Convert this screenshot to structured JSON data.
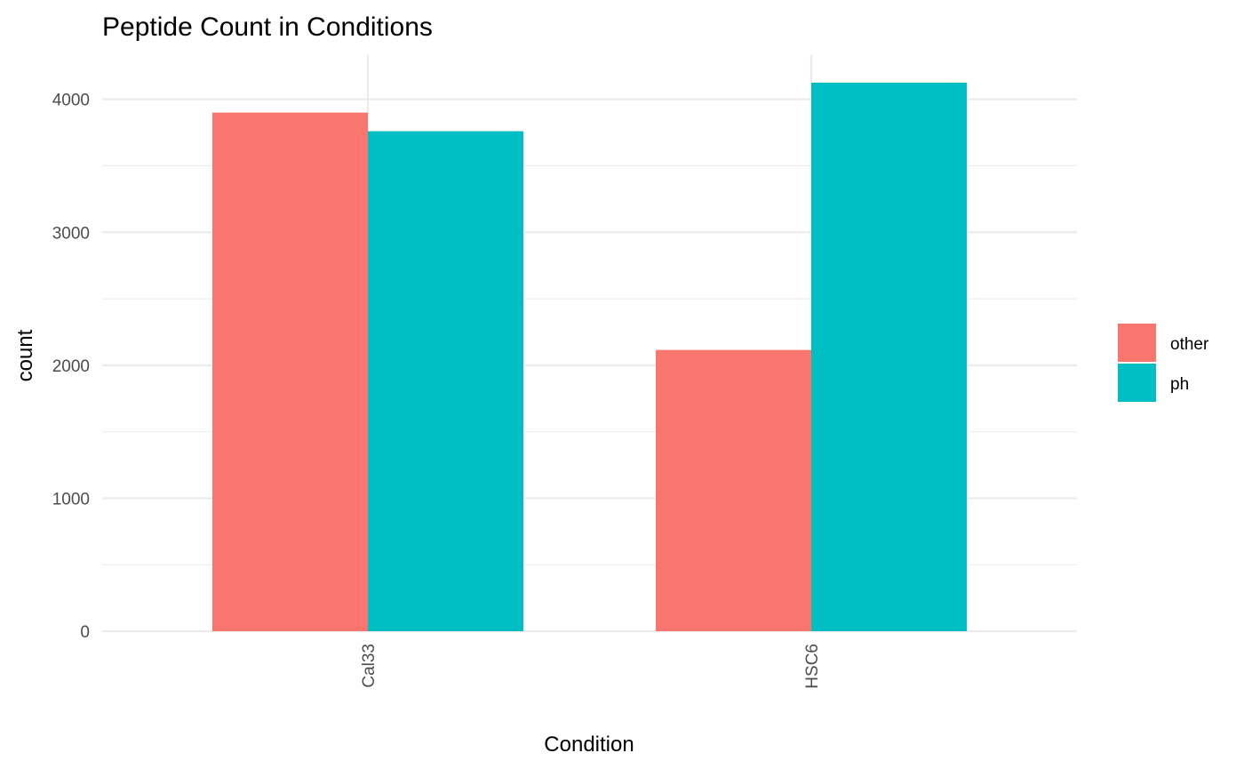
{
  "chart_data": {
    "type": "bar",
    "title": "Peptide Count in Conditions",
    "xlabel": "Condition",
    "ylabel": "count",
    "categories": [
      "Cal33",
      "HSC6"
    ],
    "series": [
      {
        "name": "other",
        "color": "#F8766D",
        "values": [
          3900,
          2115
        ]
      },
      {
        "name": "ph",
        "color": "#00BFC4",
        "values": [
          3760,
          4125
        ]
      }
    ],
    "ylim": [
      0,
      4340
    ],
    "yticks": [
      0,
      1000,
      2000,
      3000,
      4000
    ],
    "yticks_labels": [
      "0",
      "1000",
      "2000",
      "3000",
      "4000"
    ],
    "grid": true,
    "legend_position": "right",
    "x_tick_label_rotation": "vertical"
  }
}
